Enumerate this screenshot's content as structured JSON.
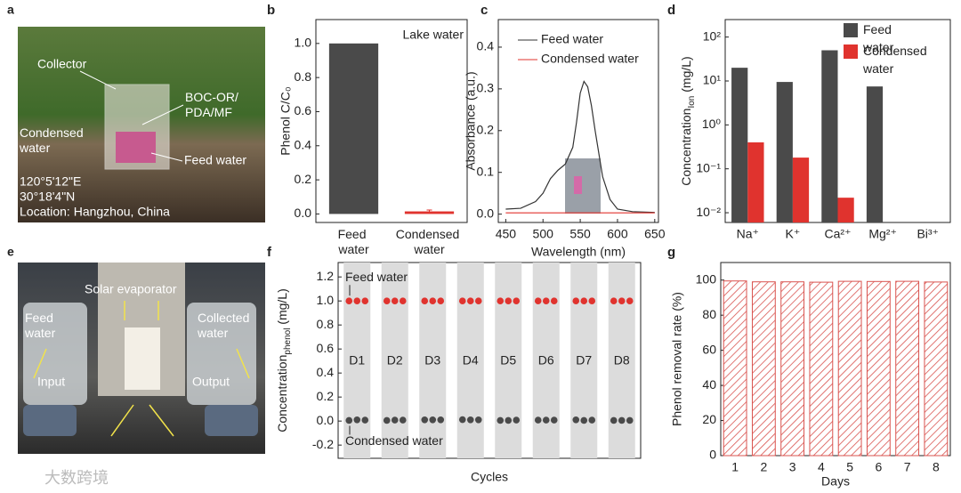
{
  "photos": [
    {
      "panel": "a",
      "labels": [
        "Collector",
        "BOC-OR/ PDA/MF",
        "Condensed water",
        "Feed water",
        "120°5'12\"E",
        "30°18'4\"N",
        "Location: Hangzhou, China"
      ]
    },
    {
      "panel": "e",
      "labels": [
        "Solar evaporator",
        "Feed water",
        "Collected water",
        "Input",
        "Output"
      ]
    }
  ],
  "watermark": "大数跨境",
  "chart_data": [
    {
      "panel": "b",
      "type": "bar",
      "ylabel": "Phenol C/C₀",
      "annotation": "Lake water",
      "categories": [
        "Feed water",
        "Condensed water"
      ],
      "values": [
        1.0,
        0.015
      ],
      "errors": [
        0,
        0.008
      ],
      "colors": [
        "#4a4a4a",
        "#e0332e"
      ],
      "ylim": [
        -0.05,
        1.14
      ],
      "yticks": [
        {
          "value": 0,
          "label": "0.0"
        },
        0.2,
        0.4,
        0.6,
        0.8,
        {
          "value": 1,
          "label": "1.0"
        }
      ]
    },
    {
      "panel": "c",
      "type": "line",
      "xlabel": "Wavelength (nm)",
      "ylabel": "Absorbance (a.u.)",
      "x": [
        450,
        470,
        490,
        500,
        510,
        520,
        530,
        540,
        545,
        550,
        555,
        560,
        565,
        570,
        580,
        590,
        600,
        620,
        650
      ],
      "series": [
        {
          "name": "Feed water",
          "color": "#333333",
          "values": [
            0.012,
            0.014,
            0.03,
            0.05,
            0.085,
            0.105,
            0.12,
            0.16,
            0.22,
            0.29,
            0.318,
            0.305,
            0.26,
            0.2,
            0.09,
            0.035,
            0.012,
            0.006,
            0.004
          ]
        },
        {
          "name": "Condensed water",
          "color": "#e0332e",
          "values": [
            0.003,
            0.003,
            0.003,
            0.003,
            0.003,
            0.003,
            0.003,
            0.003,
            0.003,
            0.003,
            0.003,
            0.003,
            0.003,
            0.003,
            0.003,
            0.003,
            0.003,
            0.003,
            0.003
          ]
        }
      ],
      "xlim": [
        440,
        655
      ],
      "xticks": [
        450,
        500,
        550,
        600,
        650
      ],
      "ylim": [
        -0.02,
        0.466
      ],
      "yticks": [
        {
          "value": 0,
          "label": "0.0"
        },
        0.1,
        0.2,
        0.3,
        0.4
      ]
    },
    {
      "panel": "d",
      "type": "bar",
      "log_scale": true,
      "ylabel": [
        "Concentration",
        "Ion",
        " (mg/L)"
      ],
      "categories": [
        "Na⁺",
        "K⁺",
        "Ca²⁺",
        "Mg²⁺",
        "Bi³⁺"
      ],
      "series": [
        {
          "name": "Feed water",
          "color": "#4a4a4a",
          "values": [
            20,
            9.5,
            50,
            7.5,
            null
          ]
        },
        {
          "name": "Condensed water",
          "color": "#e0332e",
          "values": [
            0.4,
            0.18,
            0.022,
            null,
            null
          ]
        }
      ],
      "ylim": [
        0.006,
        250
      ],
      "legend": "upper right",
      "yticks": [
        {
          "value": 0.01,
          "label": "10⁻²"
        },
        {
          "value": 0.1,
          "label": "10⁻¹"
        },
        {
          "value": 1,
          "label": "10⁰"
        },
        {
          "value": 10,
          "label": "10¹"
        },
        {
          "value": 100,
          "label": "10²"
        }
      ]
    },
    {
      "panel": "f",
      "type": "scatter",
      "xlabel": "Cycles",
      "ylabel": [
        "Concentration",
        "phenol",
        " (mg/L)"
      ],
      "categories": [
        "D1",
        "D2",
        "D3",
        "D4",
        "D5",
        "D6",
        "D7",
        "D8"
      ],
      "series": [
        {
          "name": "Feed water",
          "color": "#e0332e",
          "values": [
            [
              1,
              1,
              1
            ],
            [
              1,
              1,
              1
            ],
            [
              1,
              1,
              1
            ],
            [
              1,
              1,
              1
            ],
            [
              1,
              1,
              1
            ],
            [
              1,
              1,
              1
            ],
            [
              1,
              1,
              1
            ],
            [
              1,
              1,
              1
            ]
          ]
        },
        {
          "name": "Condensed water",
          "color": "#4a4a4a",
          "values": [
            [
              0.005,
              0.01,
              0.008
            ],
            [
              0.005,
              0.008,
              0.008
            ],
            [
              0.01,
              0.01,
              0.01
            ],
            [
              0.012,
              0.01,
              0.01
            ],
            [
              0.005,
              0.005,
              0.008
            ],
            [
              0.008,
              0.008,
              0.008
            ],
            [
              0.01,
              0.005,
              0.008
            ],
            [
              0.005,
              0.005,
              0.005
            ]
          ]
        }
      ],
      "ylim": [
        -0.31,
        1.32
      ],
      "yticks": [
        -0.2,
        {
          "value": 0,
          "label": "0.0"
        },
        0.2,
        0.4,
        0.6,
        0.8,
        {
          "value": 1,
          "label": "1.0"
        },
        1.2
      ]
    },
    {
      "panel": "g",
      "type": "bar",
      "hatch": true,
      "xlabel": "Days",
      "ylabel": "Phenol removal rate (%)",
      "categories": [
        "1",
        "2",
        "3",
        "4",
        "5",
        "6",
        "7",
        "8"
      ],
      "values": [
        99.5,
        99,
        99,
        98.8,
        99.3,
        99.2,
        99.3,
        98.9
      ],
      "color": "#d9534f",
      "ylim": [
        0,
        110
      ],
      "yticks": [
        0,
        20,
        40,
        60,
        80,
        100
      ]
    }
  ]
}
